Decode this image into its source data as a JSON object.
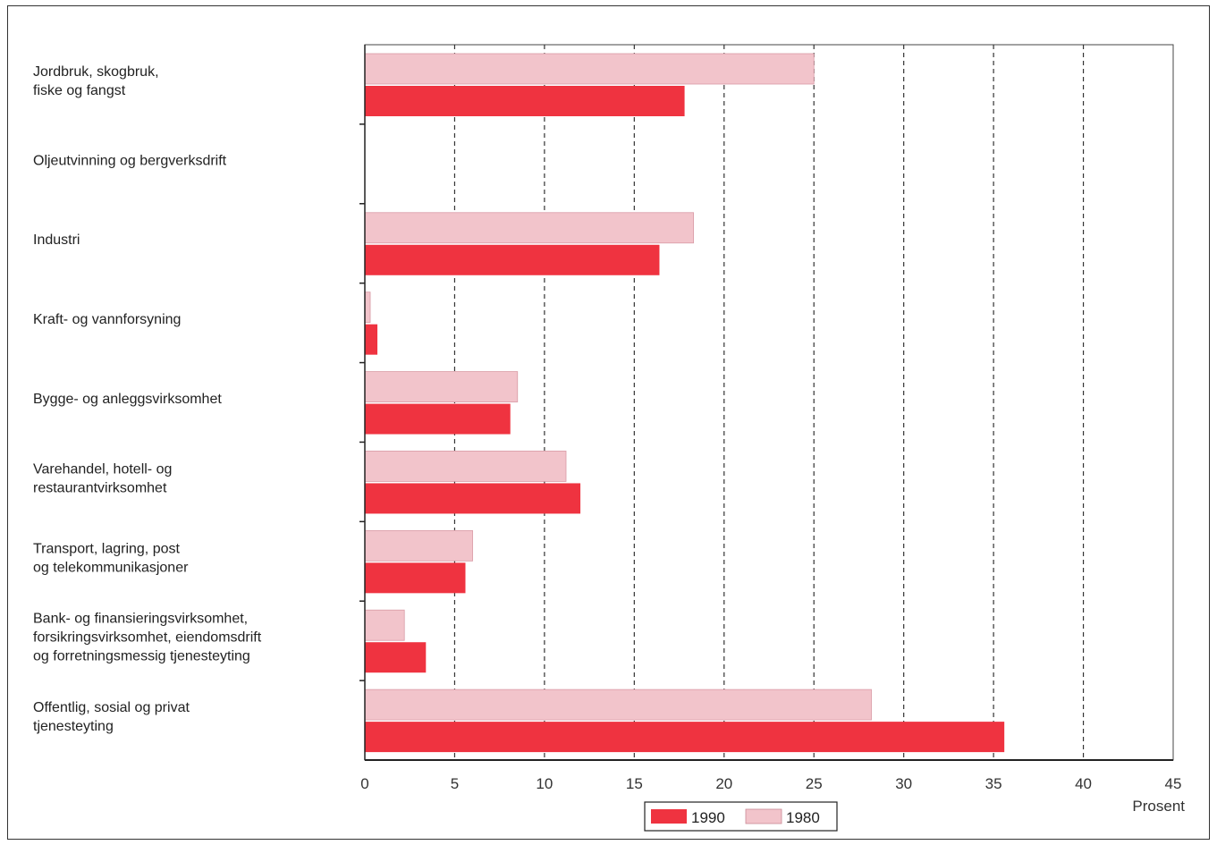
{
  "chart_data": {
    "type": "bar",
    "orientation": "horizontal",
    "categories": [
      [
        "Jordbruk, skogbruk,",
        "fiske og fangst"
      ],
      [
        "Oljeutvinning og bergverksdrift"
      ],
      [
        "Industri"
      ],
      [
        "Kraft- og vannforsyning"
      ],
      [
        "Bygge- og anleggsvirksomhet"
      ],
      [
        "Varehandel, hotell- og",
        "restaurantvirksomhet"
      ],
      [
        "Transport, lagring, post",
        "og telekommunikasjoner"
      ],
      [
        "Bank- og finansieringsvirksomhet,",
        "forsikringsvirksomhet, eiendomsdrift",
        "og forretningsmessig tjenesteyting"
      ],
      [
        "Offentlig, sosial og privat",
        "tjenesteyting"
      ]
    ],
    "series": [
      {
        "name": "1980",
        "values": [
          25.0,
          0,
          18.3,
          0.3,
          8.5,
          11.2,
          6.0,
          2.2,
          28.2
        ],
        "color": "#f2c4cb"
      },
      {
        "name": "1990",
        "values": [
          17.8,
          0,
          16.4,
          0.7,
          8.1,
          12.0,
          5.6,
          3.4,
          35.6
        ],
        "color": "#ef3340"
      }
    ],
    "xlim": [
      0,
      45
    ],
    "xticks": [
      "0",
      "5",
      "10",
      "15",
      "20",
      "25",
      "30",
      "35",
      "40",
      "45"
    ],
    "xlabel": "Prosent",
    "ylabel": "",
    "title": "",
    "grid": "vertical dashed",
    "legend": {
      "position": "bottom-center",
      "entries": [
        {
          "label": "1990",
          "color": "#ef3340"
        },
        {
          "label": "1980",
          "color": "#f2c4cb"
        }
      ]
    }
  }
}
